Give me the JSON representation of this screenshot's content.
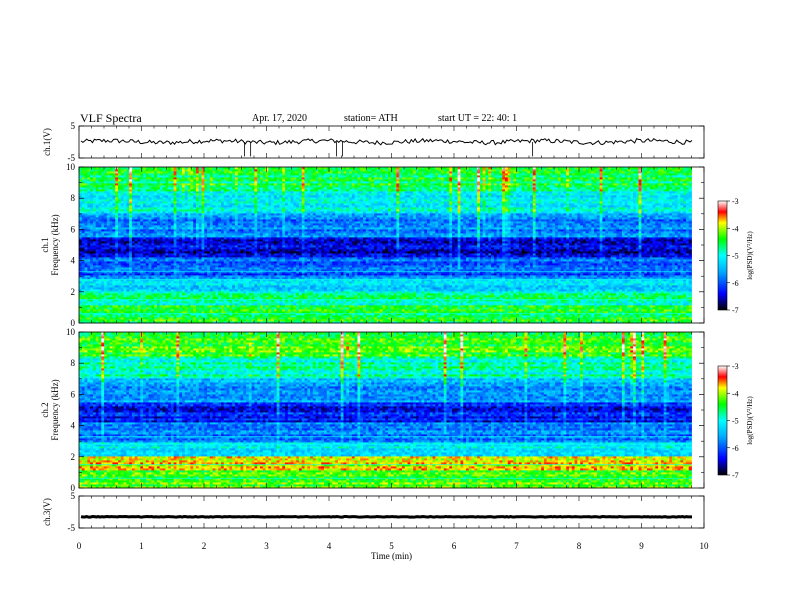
{
  "header": {
    "title": "VLF  Spectra",
    "date": "Apr. 17, 2020",
    "station": "station= ATH",
    "start_ut": "start  UT  =    22: 40: 1"
  },
  "chart_data": [
    {
      "type": "line",
      "panel": "ch1-waveform",
      "ylabel": "ch.1(V)",
      "ylim": [
        -5,
        5
      ],
      "ytick_labels": [
        "5",
        "-5"
      ],
      "xlim": [
        0,
        10
      ],
      "series": [
        {
          "description_level": 0,
          "values_mean": 0.1
        }
      ]
    },
    {
      "type": "heatmap",
      "panel": "ch1-spectrogram",
      "ylabel": "ch.1\nFrequency  (kHz)",
      "ylim": [
        0,
        10
      ],
      "ytick_labels": [
        "0",
        "2",
        "4",
        "6",
        "8",
        "10"
      ],
      "xlim": [
        0,
        10
      ],
      "x_end": 9.8,
      "colorbar": {
        "label": "log(PSD)(V²/Hz)",
        "range": [
          -7,
          -3
        ],
        "tick_labels": [
          "-3",
          "-4",
          "-5",
          "-6",
          "-7"
        ]
      }
    },
    {
      "type": "heatmap",
      "panel": "ch2-spectrogram",
      "ylabel": "ch.2\nFrequency  (kHz)",
      "ylim": [
        0,
        10
      ],
      "ytick_labels": [
        "0",
        "2",
        "4",
        "6",
        "8",
        "10"
      ],
      "xlim": [
        0,
        10
      ],
      "x_end": 9.8,
      "colorbar": {
        "label": "log(PSD)(V²/Hz)",
        "range": [
          -7,
          -3
        ],
        "tick_labels": [
          "-3",
          "-4",
          "-5",
          "-6",
          "-7"
        ]
      }
    },
    {
      "type": "line",
      "panel": "ch3-waveform",
      "ylabel": "ch.3(V)",
      "ylim": [
        -5,
        5
      ],
      "ytick_labels": [
        "5",
        "-5"
      ],
      "xlim": [
        0,
        10
      ],
      "series": [
        {
          "values_mean": -1.5
        }
      ]
    }
  ],
  "xaxis": {
    "label": "Time  (min)",
    "tick_labels": [
      "0",
      "1",
      "2",
      "3",
      "4",
      "5",
      "6",
      "7",
      "8",
      "9",
      "10"
    ]
  },
  "colors": {
    "colormap": [
      "#000000",
      "#0000ff",
      "#00a0ff",
      "#00ffff",
      "#00ff00",
      "#ffff00",
      "#ff0000",
      "#ffffff"
    ],
    "trace": "#000000"
  }
}
